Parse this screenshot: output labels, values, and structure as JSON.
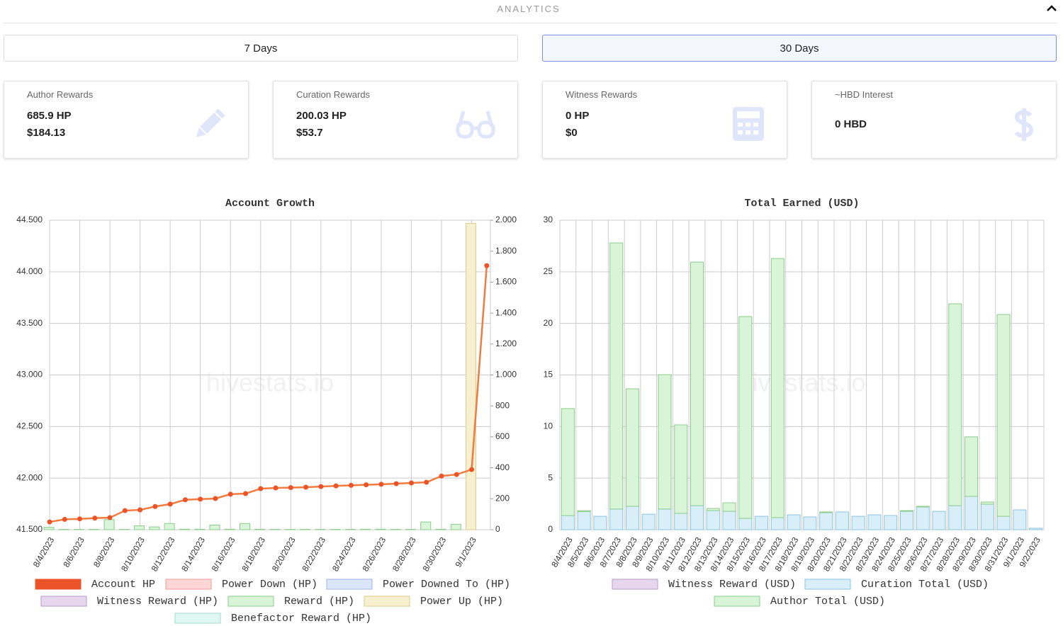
{
  "header": {
    "title": "ANALYTICS"
  },
  "buttons": [
    "7 Days",
    "30 Days"
  ],
  "cards": [
    {
      "label": "Author Rewards",
      "lines": [
        "685.9 HP",
        "$184.13"
      ]
    },
    {
      "label": "Curation Rewards",
      "lines": [
        "200.03 HP",
        "$53.7"
      ]
    },
    {
      "label": "Witness Rewards",
      "lines": [
        "0 HP",
        "$0"
      ]
    },
    {
      "label": "~HBD Interest",
      "lines": [
        "0 HBD"
      ]
    }
  ],
  "watermark": "hivestats.io",
  "chart_data": [
    {
      "type": "bar_line",
      "title": "Account Growth",
      "categories": [
        "8/4/2023",
        null,
        "8/6/2023",
        null,
        "8/8/2023",
        null,
        "8/10/2023",
        null,
        "8/12/2023",
        null,
        "8/14/2023",
        null,
        "8/16/2023",
        null,
        "8/18/2023",
        null,
        "8/20/2023",
        null,
        "8/22/2023",
        null,
        "8/24/2023",
        null,
        "8/26/2023",
        null,
        "8/28/2023",
        null,
        "8/30/2023",
        null,
        "9/1/2023",
        null
      ],
      "ylim": [
        41500,
        44500
      ],
      "yticks": [
        {
          "value": 41500,
          "label": "41.500"
        },
        {
          "value": 42000,
          "label": "42.000"
        },
        {
          "value": 42500,
          "label": "42.500"
        },
        {
          "value": 43000,
          "label": "43.000"
        },
        {
          "value": 43500,
          "label": "43.500"
        },
        {
          "value": 44000,
          "label": "44.000"
        },
        {
          "value": 44500,
          "label": "44.500"
        }
      ],
      "y2lim": [
        0,
        2000
      ],
      "y2ticks": [
        0,
        200,
        400,
        600,
        800,
        {
          "value": 1000,
          "label": "1.000"
        },
        {
          "value": 1200,
          "label": "1.200"
        },
        {
          "value": 1400,
          "label": "1.400"
        },
        {
          "value": 1600,
          "label": "1.600"
        },
        {
          "value": 1800,
          "label": "1.800"
        },
        {
          "value": 2000,
          "label": "2.000"
        }
      ],
      "grid": true,
      "series": [
        {
          "name": "Account HP",
          "kind": "line",
          "color": "#f07b3f",
          "legend_color": "#ed5329",
          "values": [
            41575,
            41600,
            41605,
            41612,
            41617,
            41685,
            41692,
            41725,
            41748,
            41790,
            41796,
            41802,
            41844,
            41850,
            41898,
            41905,
            41908,
            41912,
            41918,
            41925,
            41930,
            41935,
            41940,
            41946,
            41953,
            41960,
            42020,
            42035,
            42083,
            44060
          ]
        },
        {
          "name": "Power Down (HP)",
          "kind": "bar",
          "axis": "y2",
          "color": "#ffd6d6",
          "border": "#f59a9a",
          "values": [
            0,
            0,
            0,
            0,
            0,
            0,
            0,
            0,
            0,
            0,
            0,
            0,
            0,
            0,
            0,
            0,
            0,
            0,
            0,
            0,
            0,
            0,
            0,
            0,
            0,
            0,
            0,
            0,
            0,
            0
          ]
        },
        {
          "name": "Power Downed To (HP)",
          "kind": "bar",
          "axis": "y2",
          "color": "#dbe6fb",
          "border": "#9fb6e6",
          "values": [
            0,
            0,
            0,
            0,
            0,
            0,
            0,
            0,
            0,
            0,
            0,
            0,
            0,
            0,
            0,
            0,
            0,
            0,
            0,
            0,
            0,
            0,
            0,
            0,
            0,
            0,
            0,
            0,
            0,
            0
          ]
        },
        {
          "name": "Witness Reward (HP)",
          "kind": "bar",
          "axis": "y2",
          "color": "#e6d6ee",
          "border": "#b89ac8",
          "values": [
            0,
            0,
            0,
            0,
            0,
            0,
            0,
            0,
            0,
            0,
            0,
            0,
            0,
            0,
            0,
            0,
            0,
            0,
            0,
            0,
            0,
            0,
            0,
            0,
            0,
            0,
            0,
            0,
            0,
            0
          ]
        },
        {
          "name": "Reward (HP)",
          "kind": "bar",
          "axis": "y2",
          "color": "#d8f5d8",
          "border": "#8ccc8c",
          "values": [
            15,
            2,
            2,
            2,
            65,
            2,
            25,
            18,
            40,
            3,
            3,
            30,
            3,
            40,
            3,
            2,
            2,
            2,
            2,
            2,
            2,
            3,
            3,
            2,
            2,
            50,
            3,
            35,
            2,
            0
          ]
        },
        {
          "name": "Power Up (HP)",
          "kind": "bar",
          "axis": "y2",
          "color": "#f7f0cf",
          "border": "#dcc98a",
          "values": [
            0,
            0,
            0,
            0,
            0,
            0,
            0,
            0,
            0,
            0,
            0,
            0,
            0,
            0,
            0,
            0,
            0,
            0,
            0,
            0,
            0,
            0,
            0,
            0,
            0,
            0,
            0,
            0,
            1980,
            0
          ]
        },
        {
          "name": "Benefactor Reward (HP)",
          "kind": "bar",
          "axis": "y2",
          "color": "#def7f1",
          "border": "#a6dccf",
          "values": [
            0,
            0,
            0,
            0,
            0,
            0,
            0,
            0,
            0,
            0,
            0,
            0,
            0,
            0,
            0,
            0,
            0,
            0,
            0,
            0,
            0,
            0,
            0,
            0,
            0,
            0,
            0,
            0,
            0,
            0
          ]
        }
      ]
    },
    {
      "type": "stacked_bar",
      "title": "Total Earned (USD)",
      "categories": [
        "8/4/2023",
        "8/5/2023",
        "8/6/2023",
        "8/7/2023",
        "8/8/2023",
        "8/9/2023",
        "8/10/2023",
        "8/11/2023",
        "8/12/2023",
        "8/13/2023",
        "8/14/2023",
        "8/15/2023",
        "8/16/2023",
        "8/17/2023",
        "8/18/2023",
        "8/19/2023",
        "8/20/2023",
        "8/21/2023",
        "8/22/2023",
        "8/23/2023",
        "8/24/2023",
        "8/25/2023",
        "8/26/2023",
        "8/27/2023",
        "8/28/2023",
        "8/29/2023",
        "8/30/2023",
        "8/31/2023",
        "9/1/2023",
        "9/2/2023"
      ],
      "ylim": [
        0,
        30
      ],
      "yticks": [
        0,
        5,
        10,
        15,
        20,
        25,
        30
      ],
      "grid": true,
      "series": [
        {
          "name": "Witness Reward (USD)",
          "color": "#e6d6ee",
          "border": "#b89ac8",
          "values": [
            0,
            0,
            0,
            0,
            0,
            0,
            0,
            0,
            0,
            0,
            0,
            0,
            0,
            0,
            0,
            0,
            0,
            0,
            0,
            0,
            0,
            0,
            0,
            0,
            0,
            0,
            0,
            0,
            0,
            0
          ]
        },
        {
          "name": "Curation Total (USD)",
          "color": "#d8effa",
          "border": "#8cc4e0",
          "values": [
            1.37,
            1.75,
            1.3,
            2.0,
            2.27,
            1.5,
            2.0,
            1.58,
            2.33,
            1.85,
            1.78,
            1.1,
            1.3,
            1.17,
            1.44,
            1.24,
            1.65,
            1.72,
            1.3,
            1.44,
            1.37,
            1.78,
            2.2,
            1.78,
            2.33,
            3.23,
            2.47,
            1.3,
            1.92,
            0.14
          ]
        },
        {
          "name": "Author Total (USD)",
          "color": "#d8f5d8",
          "border": "#8ccc8c",
          "values": [
            10.37,
            0.1,
            0,
            25.8,
            11.39,
            0,
            13.03,
            8.58,
            23.61,
            0.21,
            0.83,
            19.56,
            0,
            25.12,
            0,
            0,
            0.07,
            0,
            0,
            0,
            0,
            0.07,
            0.07,
            0,
            19.57,
            5.77,
            0.21,
            19.56,
            0,
            0
          ]
        }
      ]
    }
  ]
}
